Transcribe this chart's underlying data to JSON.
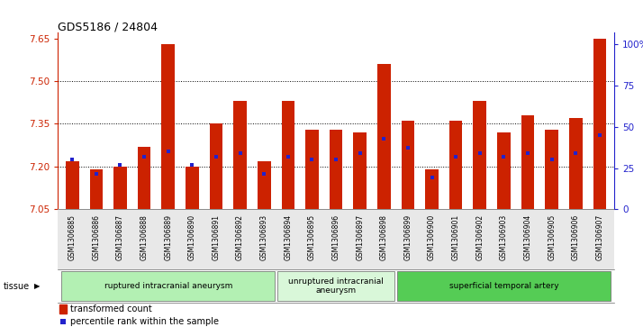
{
  "title": "GDS5186 / 24804",
  "samples": [
    "GSM1306885",
    "GSM1306886",
    "GSM1306887",
    "GSM1306888",
    "GSM1306889",
    "GSM1306890",
    "GSM1306891",
    "GSM1306892",
    "GSM1306893",
    "GSM1306894",
    "GSM1306895",
    "GSM1306896",
    "GSM1306897",
    "GSM1306898",
    "GSM1306899",
    "GSM1306900",
    "GSM1306901",
    "GSM1306902",
    "GSM1306903",
    "GSM1306904",
    "GSM1306905",
    "GSM1306906",
    "GSM1306907"
  ],
  "bar_values": [
    7.22,
    7.19,
    7.2,
    7.27,
    7.63,
    7.2,
    7.35,
    7.43,
    7.22,
    7.43,
    7.33,
    7.33,
    7.32,
    7.56,
    7.36,
    7.19,
    7.36,
    7.43,
    7.32,
    7.38,
    7.33,
    7.37,
    7.65
  ],
  "percentile_values": [
    28,
    20,
    25,
    30,
    33,
    25,
    30,
    32,
    20,
    30,
    28,
    28,
    32,
    40,
    35,
    18,
    30,
    32,
    30,
    32,
    28,
    32,
    42
  ],
  "groups": [
    {
      "label": "ruptured intracranial aneurysm",
      "start": 0,
      "end": 8,
      "color": "#b3f0b3"
    },
    {
      "label": "unruptured intracranial\naneurysm",
      "start": 9,
      "end": 13,
      "color": "#d9f7d9"
    },
    {
      "label": "superficial temporal artery",
      "start": 14,
      "end": 22,
      "color": "#55cc55"
    }
  ],
  "ylim_left": [
    7.05,
    7.67
  ],
  "yticks_left": [
    7.05,
    7.2,
    7.35,
    7.5,
    7.65
  ],
  "ylim_right": [
    0,
    107
  ],
  "yticks_right": [
    0,
    25,
    50,
    75,
    100
  ],
  "bar_color": "#cc2200",
  "percentile_color": "#2222cc",
  "left_axis_color": "#cc2200",
  "right_axis_color": "#2222cc",
  "bar_width": 0.55
}
